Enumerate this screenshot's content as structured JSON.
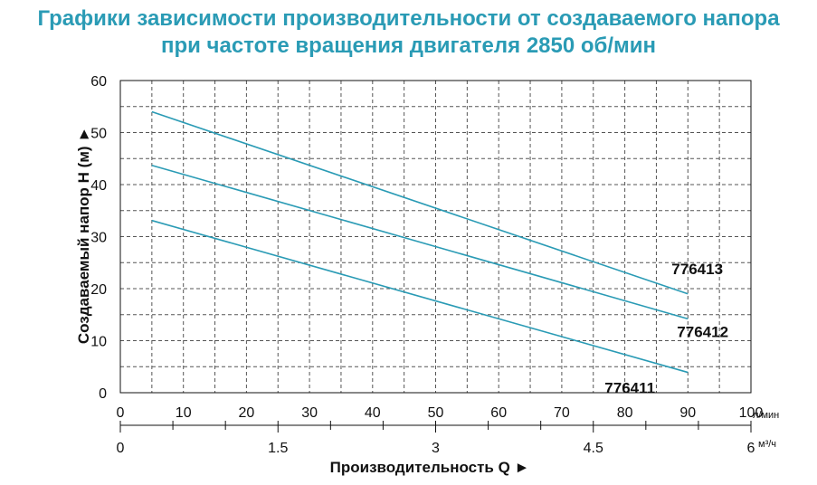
{
  "chart_data": {
    "type": "line",
    "title_line1": "Графики зависимости производительности от создаваемого напора",
    "title_line2": "при частоте вращения двигателя 2850 об/мин",
    "ylabel": "Создаваемый напор Н (м) ►",
    "xlabel": "Производительность Q ►",
    "x_unit_primary": "л/мин",
    "x_unit_secondary": "м³/ч",
    "xlim": [
      0,
      100
    ],
    "ylim": [
      0,
      60
    ],
    "x_ticks": [
      0,
      10,
      20,
      30,
      40,
      50,
      60,
      70,
      80,
      90,
      100
    ],
    "y_ticks": [
      0,
      10,
      20,
      30,
      40,
      50,
      60
    ],
    "x2_ticks": [
      "0",
      "1.5",
      "3",
      "4.5",
      "6"
    ],
    "x2_lim": [
      0,
      6
    ],
    "grid": true,
    "line_color": "#2a9bb5",
    "series": [
      {
        "name": "776413",
        "x": [
          5,
          90
        ],
        "y": [
          54,
          19
        ]
      },
      {
        "name": "776412",
        "x": [
          5,
          90
        ],
        "y": [
          43.7,
          14.2
        ]
      },
      {
        "name": "776411",
        "x": [
          5,
          90
        ],
        "y": [
          33.1,
          3.9
        ]
      }
    ]
  }
}
